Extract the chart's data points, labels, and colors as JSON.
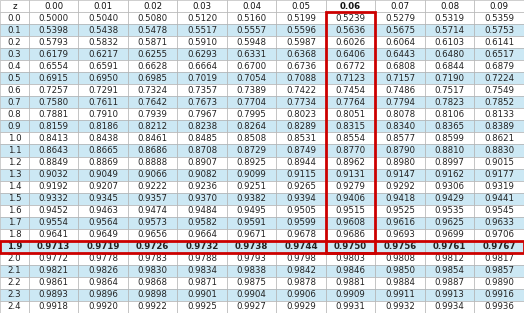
{
  "col_headers": [
    "z",
    "0.00",
    "0.01",
    "0.02",
    "0.03",
    "0.04",
    "0.05",
    "0.06",
    "0.07",
    "0.08",
    "0.09"
  ],
  "rows": [
    [
      "0.0",
      "0.5000",
      "0.5040",
      "0.5080",
      "0.5120",
      "0.5160",
      "0.5199",
      "0.5239",
      "0.5279",
      "0.5319",
      "0.5359"
    ],
    [
      "0.1",
      "0.5398",
      "0.5438",
      "0.5478",
      "0.5517",
      "0.5557",
      "0.5596",
      "0.5636",
      "0.5675",
      "0.5714",
      "0.5753"
    ],
    [
      "0.2",
      "0.5793",
      "0.5832",
      "0.5871",
      "0.5910",
      "0.5948",
      "0.5987",
      "0.6026",
      "0.6064",
      "0.6103",
      "0.6141"
    ],
    [
      "0.3",
      "0.6179",
      "0.6217",
      "0.6255",
      "0.6293",
      "0.6331",
      "0.6368",
      "0.6406",
      "0.6443",
      "0.6480",
      "0.6517"
    ],
    [
      "0.4",
      "0.6554",
      "0.6591",
      "0.6628",
      "0.6664",
      "0.6700",
      "0.6736",
      "0.6772",
      "0.6808",
      "0.6844",
      "0.6879"
    ],
    [
      "0.5",
      "0.6915",
      "0.6950",
      "0.6985",
      "0.7019",
      "0.7054",
      "0.7088",
      "0.7123",
      "0.7157",
      "0.7190",
      "0.7224"
    ],
    [
      "0.6",
      "0.7257",
      "0.7291",
      "0.7324",
      "0.7357",
      "0.7389",
      "0.7422",
      "0.7454",
      "0.7486",
      "0.7517",
      "0.7549"
    ],
    [
      "0.7",
      "0.7580",
      "0.7611",
      "0.7642",
      "0.7673",
      "0.7704",
      "0.7734",
      "0.7764",
      "0.7794",
      "0.7823",
      "0.7852"
    ],
    [
      "0.8",
      "0.7881",
      "0.7910",
      "0.7939",
      "0.7967",
      "0.7995",
      "0.8023",
      "0.8051",
      "0.8078",
      "0.8106",
      "0.8133"
    ],
    [
      "0.9",
      "0.8159",
      "0.8186",
      "0.8212",
      "0.8238",
      "0.8264",
      "0.8289",
      "0.8315",
      "0.8340",
      "0.8365",
      "0.8389"
    ],
    [
      "1.0",
      "0.8413",
      "0.8438",
      "0.8461",
      "0.8485",
      "0.8508",
      "0.8531",
      "0.8554",
      "0.8577",
      "0.8599",
      "0.8621"
    ],
    [
      "1.1",
      "0.8643",
      "0.8665",
      "0.8686",
      "0.8708",
      "0.8729",
      "0.8749",
      "0.8770",
      "0.8790",
      "0.8810",
      "0.8830"
    ],
    [
      "1.2",
      "0.8849",
      "0.8869",
      "0.8888",
      "0.8907",
      "0.8925",
      "0.8944",
      "0.8962",
      "0.8980",
      "0.8997",
      "0.9015"
    ],
    [
      "1.3",
      "0.9032",
      "0.9049",
      "0.9066",
      "0.9082",
      "0.9099",
      "0.9115",
      "0.9131",
      "0.9147",
      "0.9162",
      "0.9177"
    ],
    [
      "1.4",
      "0.9192",
      "0.9207",
      "0.9222",
      "0.9236",
      "0.9251",
      "0.9265",
      "0.9279",
      "0.9292",
      "0.9306",
      "0.9319"
    ],
    [
      "1.5",
      "0.9332",
      "0.9345",
      "0.9357",
      "0.9370",
      "0.9382",
      "0.9394",
      "0.9406",
      "0.9418",
      "0.9429",
      "0.9441"
    ],
    [
      "1.6",
      "0.9452",
      "0.9463",
      "0.9474",
      "0.9484",
      "0.9495",
      "0.9505",
      "0.9515",
      "0.9525",
      "0.9535",
      "0.9545"
    ],
    [
      "1.7",
      "0.9554",
      "0.9564",
      "0.9573",
      "0.9582",
      "0.9591",
      "0.9599",
      "0.9608",
      "0.9616",
      "0.9625",
      "0.9633"
    ],
    [
      "1.8",
      "0.9641",
      "0.9649",
      "0.9656",
      "0.9664",
      "0.9671",
      "0.9678",
      "0.9686",
      "0.9693",
      "0.9699",
      "0.9706"
    ],
    [
      "1.9",
      "0.9713",
      "0.9719",
      "0.9726",
      "0.9732",
      "0.9738",
      "0.9744",
      "0.9750",
      "0.9756",
      "0.9761",
      "0.9767"
    ],
    [
      "2.0",
      "0.9772",
      "0.9778",
      "0.9783",
      "0.9788",
      "0.9793",
      "0.9798",
      "0.9803",
      "0.9808",
      "0.9812",
      "0.9817"
    ],
    [
      "2.1",
      "0.9821",
      "0.9826",
      "0.9830",
      "0.9834",
      "0.9838",
      "0.9842",
      "0.9846",
      "0.9850",
      "0.9854",
      "0.9857"
    ],
    [
      "2.2",
      "0.9861",
      "0.9864",
      "0.9868",
      "0.9871",
      "0.9875",
      "0.9878",
      "0.9881",
      "0.9884",
      "0.9887",
      "0.9890"
    ],
    [
      "2.3",
      "0.9893",
      "0.9896",
      "0.9898",
      "0.9901",
      "0.9904",
      "0.9906",
      "0.9909",
      "0.9911",
      "0.9913",
      "0.9916"
    ],
    [
      "2.4",
      "0.9918",
      "0.9920",
      "0.9922",
      "0.9925",
      "0.9927",
      "0.9929",
      "0.9931",
      "0.9932",
      "0.9934",
      "0.9936"
    ]
  ],
  "highlight_col": 7,
  "highlight_row": 19,
  "header_bg": "#ffffff",
  "alt_row_bg": "#cce8f4",
  "normal_row_bg": "#ffffff",
  "cell_text_color": "#222222",
  "header_text_color": "#111111",
  "highlight_row_bg": "#cce8f4",
  "border_color": "#aaaaaa",
  "red_border_color": "#cc0000",
  "font_size": 6.2
}
